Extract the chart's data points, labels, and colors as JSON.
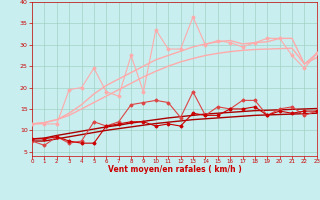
{
  "x": [
    0,
    1,
    2,
    3,
    4,
    5,
    6,
    7,
    8,
    9,
    10,
    11,
    12,
    13,
    14,
    15,
    16,
    17,
    18,
    19,
    20,
    21,
    22,
    23
  ],
  "series": [
    {
      "color": "#dd4444",
      "linewidth": 0.8,
      "marker": "D",
      "markersize": 1.5,
      "y": [
        7.5,
        6.5,
        8.5,
        7.0,
        7.5,
        12.0,
        11.0,
        12.0,
        16.0,
        16.5,
        17.0,
        16.5,
        13.0,
        19.0,
        13.5,
        15.5,
        15.0,
        17.0,
        17.0,
        13.5,
        15.0,
        15.5,
        13.5,
        14.5
      ]
    },
    {
      "color": "#aa0000",
      "linewidth": 1.0,
      "marker": null,
      "markersize": 0,
      "y": [
        8.0,
        8.2,
        8.8,
        9.3,
        9.8,
        10.3,
        10.8,
        11.2,
        11.7,
        12.1,
        12.5,
        12.9,
        13.2,
        13.5,
        13.8,
        14.0,
        14.2,
        14.4,
        14.6,
        14.7,
        14.8,
        14.9,
        15.0,
        15.1
      ]
    },
    {
      "color": "#aa0000",
      "linewidth": 1.0,
      "marker": null,
      "markersize": 0,
      "y": [
        7.5,
        7.5,
        8.0,
        8.5,
        9.0,
        9.5,
        10.0,
        10.4,
        10.8,
        11.2,
        11.6,
        11.9,
        12.2,
        12.5,
        12.7,
        12.9,
        13.1,
        13.3,
        13.5,
        13.6,
        13.7,
        13.8,
        13.9,
        14.0
      ]
    },
    {
      "color": "#cc0000",
      "linewidth": 0.8,
      "marker": "D",
      "markersize": 1.5,
      "y": [
        8.0,
        8.0,
        8.5,
        7.5,
        7.0,
        7.0,
        11.0,
        11.5,
        12.0,
        12.0,
        11.0,
        11.5,
        11.0,
        14.0,
        13.5,
        13.5,
        15.0,
        15.0,
        15.5,
        13.5,
        14.5,
        14.0,
        14.5,
        14.5
      ]
    },
    {
      "color": "#ffaaaa",
      "linewidth": 1.0,
      "marker": null,
      "markersize": 0,
      "y": [
        11.5,
        11.8,
        12.5,
        13.5,
        15.0,
        16.5,
        18.0,
        19.5,
        21.0,
        22.5,
        23.8,
        25.0,
        26.0,
        26.8,
        27.5,
        28.0,
        28.4,
        28.7,
        28.9,
        29.0,
        29.1,
        29.2,
        25.5,
        27.0
      ]
    },
    {
      "color": "#ffaaaa",
      "linewidth": 1.0,
      "marker": null,
      "markersize": 0,
      "y": [
        11.5,
        11.8,
        12.5,
        14.0,
        16.0,
        18.5,
        20.5,
        22.0,
        23.5,
        25.0,
        26.5,
        27.5,
        28.5,
        29.5,
        30.2,
        30.7,
        31.0,
        30.2,
        30.5,
        30.7,
        31.5,
        31.5,
        25.5,
        28.0
      ]
    },
    {
      "color": "#ffaaaa",
      "linewidth": 0.8,
      "marker": "D",
      "markersize": 1.5,
      "y": [
        11.5,
        11.5,
        11.5,
        19.5,
        20.0,
        24.5,
        19.0,
        18.0,
        27.5,
        19.0,
        33.5,
        29.0,
        29.0,
        36.5,
        30.0,
        31.0,
        30.5,
        29.5,
        30.5,
        31.5,
        31.5,
        27.5,
        24.5,
        28.0
      ]
    }
  ],
  "xlim": [
    0,
    23
  ],
  "ylim": [
    4,
    40
  ],
  "yticks": [
    5,
    10,
    15,
    20,
    25,
    30,
    35,
    40
  ],
  "xticks": [
    0,
    1,
    2,
    3,
    4,
    5,
    6,
    7,
    8,
    9,
    10,
    11,
    12,
    13,
    14,
    15,
    16,
    17,
    18,
    19,
    20,
    21,
    22,
    23
  ],
  "xlabel": "Vent moyen/en rafales ( km/h )",
  "background_color": "#c8eef0",
  "grid_color": "#99ccbb",
  "tick_color": "#cc0000",
  "xlabel_color": "#cc0000"
}
